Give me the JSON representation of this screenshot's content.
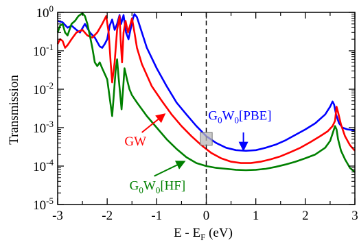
{
  "chart_data": {
    "type": "line",
    "xlabel": {
      "main": "E - E",
      "sub": "F",
      "unit": " (eV)"
    },
    "ylabel": "Transmission",
    "xlim": [
      -3,
      3
    ],
    "ylim": [
      1e-05,
      1
    ],
    "yscale": "log",
    "grid": false,
    "legend": "none",
    "x_ticks": [
      -3,
      -2,
      -1,
      0,
      1,
      2,
      3
    ],
    "y_ticks": [
      {
        "value": 1,
        "base": "10",
        "exp": "0"
      },
      {
        "value": 0.1,
        "base": "10",
        "exp": "-1"
      },
      {
        "value": 0.01,
        "base": "10",
        "exp": "-2"
      },
      {
        "value": 0.001,
        "base": "10",
        "exp": "-3"
      },
      {
        "value": 0.0001,
        "base": "10",
        "exp": "-4"
      },
      {
        "value": 1e-05,
        "base": "10",
        "exp": "-5"
      }
    ],
    "fermi_line": {
      "x": 0,
      "style": "dashed"
    },
    "highlight_box": {
      "x": [
        -0.12,
        0.12
      ],
      "y": [
        0.00035,
        0.00075
      ]
    },
    "series": [
      {
        "color": "#0000ff",
        "points": [
          [
            -3.0,
            0.6
          ],
          [
            -2.9,
            0.55
          ],
          [
            -2.8,
            0.4
          ],
          [
            -2.72,
            0.45
          ],
          [
            -2.62,
            0.35
          ],
          [
            -2.55,
            0.3
          ],
          [
            -2.45,
            0.5
          ],
          [
            -2.35,
            0.3
          ],
          [
            -2.25,
            0.22
          ],
          [
            -2.15,
            0.13
          ],
          [
            -2.1,
            0.12
          ],
          [
            -2.05,
            0.15
          ],
          [
            -2.0,
            0.2
          ],
          [
            -1.95,
            0.45
          ],
          [
            -1.9,
            0.65
          ],
          [
            -1.85,
            0.35
          ],
          [
            -1.8,
            0.5
          ],
          [
            -1.75,
            0.85
          ],
          [
            -1.72,
            0.5
          ],
          [
            -1.67,
            0.85
          ],
          [
            -1.62,
            0.3
          ],
          [
            -1.57,
            0.2
          ],
          [
            -1.53,
            0.35
          ],
          [
            -1.48,
            0.7
          ],
          [
            -1.45,
            0.9
          ],
          [
            -1.4,
            0.75
          ],
          [
            -1.3,
            0.3
          ],
          [
            -1.2,
            0.12
          ],
          [
            -1.0,
            0.035
          ],
          [
            -0.8,
            0.012
          ],
          [
            -0.6,
            0.0045
          ],
          [
            -0.4,
            0.0022
          ],
          [
            -0.2,
            0.0011
          ],
          [
            0.0,
            0.0006
          ],
          [
            0.2,
            0.0004
          ],
          [
            0.4,
            0.0003
          ],
          [
            0.6,
            0.00026
          ],
          [
            0.8,
            0.00025
          ],
          [
            1.0,
            0.00026
          ],
          [
            1.2,
            0.0003
          ],
          [
            1.4,
            0.00036
          ],
          [
            1.6,
            0.00047
          ],
          [
            1.8,
            0.00065
          ],
          [
            2.0,
            0.0009
          ],
          [
            2.2,
            0.0013
          ],
          [
            2.4,
            0.0022
          ],
          [
            2.5,
            0.0035
          ],
          [
            2.55,
            0.0048
          ],
          [
            2.58,
            0.004
          ],
          [
            2.62,
            0.0022
          ],
          [
            2.68,
            0.0013
          ],
          [
            2.75,
            0.001
          ],
          [
            2.85,
            0.0009
          ],
          [
            3.0,
            0.00085
          ]
        ]
      },
      {
        "color": "#ff0000",
        "points": [
          [
            -3.0,
            0.15
          ],
          [
            -2.95,
            0.2
          ],
          [
            -2.9,
            0.18
          ],
          [
            -2.85,
            0.12
          ],
          [
            -2.8,
            0.14
          ],
          [
            -2.72,
            0.2
          ],
          [
            -2.62,
            0.3
          ],
          [
            -2.5,
            0.35
          ],
          [
            -2.4,
            0.25
          ],
          [
            -2.3,
            0.22
          ],
          [
            -2.2,
            0.3
          ],
          [
            -2.1,
            0.5
          ],
          [
            -2.02,
            0.8
          ],
          [
            -1.97,
            0.3
          ],
          [
            -1.93,
            0.05
          ],
          [
            -1.9,
            0.015
          ],
          [
            -1.85,
            0.05
          ],
          [
            -1.8,
            0.35
          ],
          [
            -1.75,
            0.8
          ],
          [
            -1.73,
            0.2
          ],
          [
            -1.7,
            0.05
          ],
          [
            -1.67,
            0.3
          ],
          [
            -1.63,
            0.6
          ],
          [
            -1.58,
            0.3
          ],
          [
            -1.53,
            0.5
          ],
          [
            -1.5,
            0.7
          ],
          [
            -1.45,
            0.3
          ],
          [
            -1.4,
            0.12
          ],
          [
            -1.3,
            0.045
          ],
          [
            -1.1,
            0.012
          ],
          [
            -0.9,
            0.005
          ],
          [
            -0.7,
            0.0022
          ],
          [
            -0.5,
            0.0011
          ],
          [
            -0.3,
            0.0006
          ],
          [
            -0.1,
            0.00035
          ],
          [
            0.1,
            0.00022
          ],
          [
            0.3,
            0.00016
          ],
          [
            0.5,
            0.00013
          ],
          [
            0.7,
            0.00012
          ],
          [
            0.9,
            0.00012
          ],
          [
            1.1,
            0.00013
          ],
          [
            1.3,
            0.00015
          ],
          [
            1.5,
            0.00018
          ],
          [
            1.7,
            0.00023
          ],
          [
            1.9,
            0.0003
          ],
          [
            2.1,
            0.00042
          ],
          [
            2.3,
            0.0006
          ],
          [
            2.45,
            0.0008
          ],
          [
            2.55,
            0.0011
          ],
          [
            2.6,
            0.0015
          ],
          [
            2.63,
            0.0035
          ],
          [
            2.66,
            0.0025
          ],
          [
            2.72,
            0.0012
          ],
          [
            2.8,
            0.0006
          ],
          [
            2.9,
            0.00035
          ],
          [
            3.0,
            0.00025
          ]
        ]
      },
      {
        "color": "#008000",
        "points": [
          [
            -3.0,
            0.3
          ],
          [
            -2.95,
            0.45
          ],
          [
            -2.9,
            0.5
          ],
          [
            -2.85,
            0.3
          ],
          [
            -2.8,
            0.25
          ],
          [
            -2.72,
            0.5
          ],
          [
            -2.65,
            0.6
          ],
          [
            -2.58,
            0.8
          ],
          [
            -2.5,
            0.95
          ],
          [
            -2.45,
            0.8
          ],
          [
            -2.4,
            0.5
          ],
          [
            -2.35,
            0.25
          ],
          [
            -2.3,
            0.12
          ],
          [
            -2.25,
            0.05
          ],
          [
            -2.2,
            0.04
          ],
          [
            -2.15,
            0.05
          ],
          [
            -2.1,
            0.035
          ],
          [
            -2.05,
            0.025
          ],
          [
            -2.0,
            0.018
          ],
          [
            -1.95,
            0.006
          ],
          [
            -1.9,
            0.002
          ],
          [
            -1.87,
            0.006
          ],
          [
            -1.83,
            0.03
          ],
          [
            -1.8,
            0.06
          ],
          [
            -1.77,
            0.02
          ],
          [
            -1.74,
            0.008
          ],
          [
            -1.71,
            0.003
          ],
          [
            -1.68,
            0.01
          ],
          [
            -1.65,
            0.035
          ],
          [
            -1.6,
            0.018
          ],
          [
            -1.55,
            0.01
          ],
          [
            -1.5,
            0.007
          ],
          [
            -1.4,
            0.0045
          ],
          [
            -1.2,
            0.002
          ],
          [
            -1.0,
            0.001
          ],
          [
            -0.8,
            0.0005
          ],
          [
            -0.6,
            0.00028
          ],
          [
            -0.4,
            0.00017
          ],
          [
            -0.2,
            0.00012
          ],
          [
            0.0,
            0.0001
          ],
          [
            0.2,
            9e-05
          ],
          [
            0.4,
            8.5e-05
          ],
          [
            0.6,
            8e-05
          ],
          [
            0.8,
            7.8e-05
          ],
          [
            1.0,
            8e-05
          ],
          [
            1.2,
            8.5e-05
          ],
          [
            1.4,
            9.5e-05
          ],
          [
            1.6,
            0.00011
          ],
          [
            1.8,
            0.00013
          ],
          [
            2.0,
            0.00016
          ],
          [
            2.2,
            0.0002
          ],
          [
            2.4,
            0.0003
          ],
          [
            2.5,
            0.00045
          ],
          [
            2.55,
            0.0007
          ],
          [
            2.6,
            0.0011
          ],
          [
            2.63,
            0.0009
          ],
          [
            2.66,
            0.0005
          ],
          [
            2.72,
            0.00025
          ],
          [
            2.8,
            0.00015
          ],
          [
            2.9,
            9e-05
          ],
          [
            3.0,
            7e-05
          ]
        ]
      }
    ],
    "annotations": [
      {
        "id": "pbe",
        "base": "G",
        "sub1": "0",
        "mid": "W",
        "sub2": "0",
        "tail": "[PBE]",
        "color": "#0000ff",
        "text_x": 0.04,
        "text_y": 0.0016,
        "arrow_from": [
          0.75,
          0.00075
        ],
        "arrow_to": [
          0.75,
          0.00027
        ]
      },
      {
        "id": "gw",
        "text": "GW",
        "color": "#ff0000",
        "text_x": -1.65,
        "text_y": 0.00034,
        "arrow_from": [
          -1.3,
          0.00075
        ],
        "arrow_to": [
          -0.85,
          0.0022
        ]
      },
      {
        "id": "hf",
        "base": "G",
        "sub1": "0",
        "mid": "W",
        "sub2": "0",
        "tail": "[HF]",
        "color": "#008000",
        "text_x": -1.55,
        "text_y": 2.4e-05,
        "arrow_from": [
          -1.05,
          5.5e-05
        ],
        "arrow_to": [
          -0.45,
          0.00013
        ]
      }
    ]
  }
}
